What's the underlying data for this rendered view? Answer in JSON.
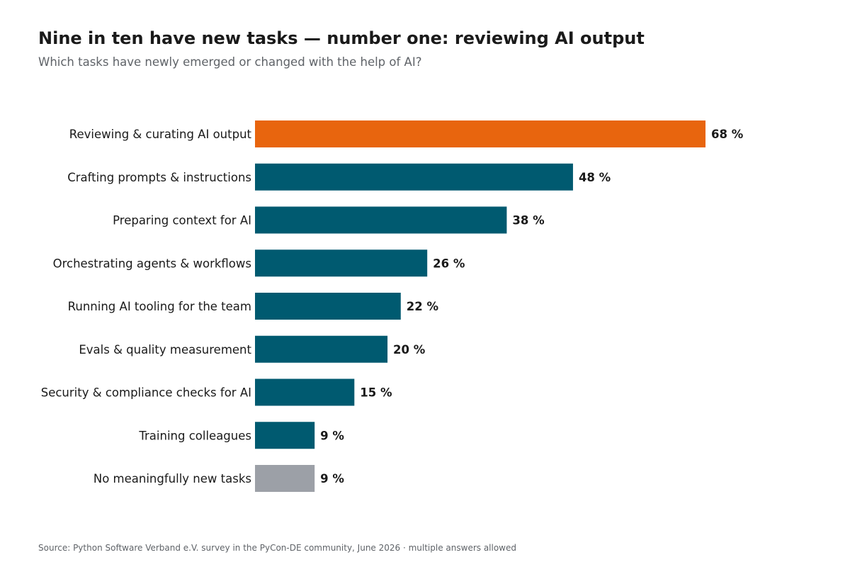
{
  "title": "Nine in ten have new tasks — number one: reviewing AI output",
  "subtitle": "Which tasks have newly emerged or changed with the help of AI?",
  "source": "Source: Python Software Verband e.V. survey in the PyCon-DE community, June 2026 · multiple answers allowed",
  "colors": {
    "highlight": "#e8650e",
    "primary": "#005a70",
    "neutral": "#9ca0a7",
    "label": "#1a1a1a"
  },
  "chart_data": {
    "type": "bar",
    "orientation": "horizontal",
    "title": "Nine in ten have new tasks — number one: reviewing AI output",
    "subtitle": "Which tasks have newly emerged or changed with the help of AI?",
    "xlabel": "",
    "ylabel": "",
    "xlim": [
      0,
      100
    ],
    "grid": false,
    "unit": "%",
    "categories": [
      "Reviewing & curating AI output",
      "Crafting prompts & instructions",
      "Preparing context for AI",
      "Orchestrating agents & workflows",
      "Running AI tooling for the team",
      "Evals & quality measurement",
      "Security & compliance checks for AI",
      "Training colleagues",
      "No meaningfully new tasks"
    ],
    "values": [
      68,
      48,
      38,
      26,
      22,
      20,
      15,
      9,
      9
    ],
    "value_labels": [
      "68 %",
      "48 %",
      "38 %",
      "26 %",
      "22 %",
      "20 %",
      "15 %",
      "9 %",
      "9 %"
    ],
    "bar_colors": [
      "highlight",
      "primary",
      "primary",
      "primary",
      "primary",
      "primary",
      "primary",
      "primary",
      "neutral"
    ]
  }
}
